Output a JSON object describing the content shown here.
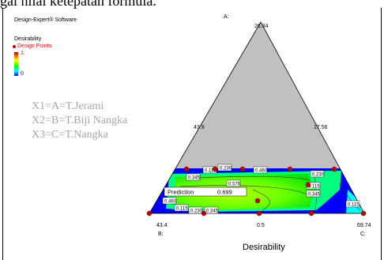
{
  "caption_text": "gai nilai ketepatan formula.",
  "software_label": "Design-Expert® Software",
  "legend": {
    "title": "Desirability",
    "design_points": "Design Points",
    "max": "1",
    "min": "0"
  },
  "equations": [
    "X1=A=T.Jerami",
    "X2=B=T.Biji Nangka",
    "X3=C=T.Nangka"
  ],
  "chart_data": {
    "type": "ternary",
    "xlabel": "Desirability",
    "vertices": {
      "top": {
        "label": "A:",
        "value": "26.34"
      },
      "left": {
        "label": "B:",
        "value": "43.4"
      },
      "right": {
        "label": "C:",
        "value": "69.74"
      }
    },
    "edge_labels": {
      "left": "43.9",
      "right": "17.56",
      "bottom": "0.5"
    },
    "contour_labels": [
      "0.115",
      "0.230",
      "0.460",
      "0.345",
      "0.576",
      "0.230",
      "0.115",
      "0.345",
      "0.460",
      "0.115",
      "0.230",
      "0.345",
      "0.115"
    ],
    "prediction": {
      "label": "Prediction",
      "value": "0.699"
    },
    "colors": {
      "background": "#0000ff",
      "feasible_low": "#00ff00",
      "feasible_high": "#aaff00",
      "infeasible": "#c0c0c0",
      "design_point": "#c00000"
    }
  }
}
